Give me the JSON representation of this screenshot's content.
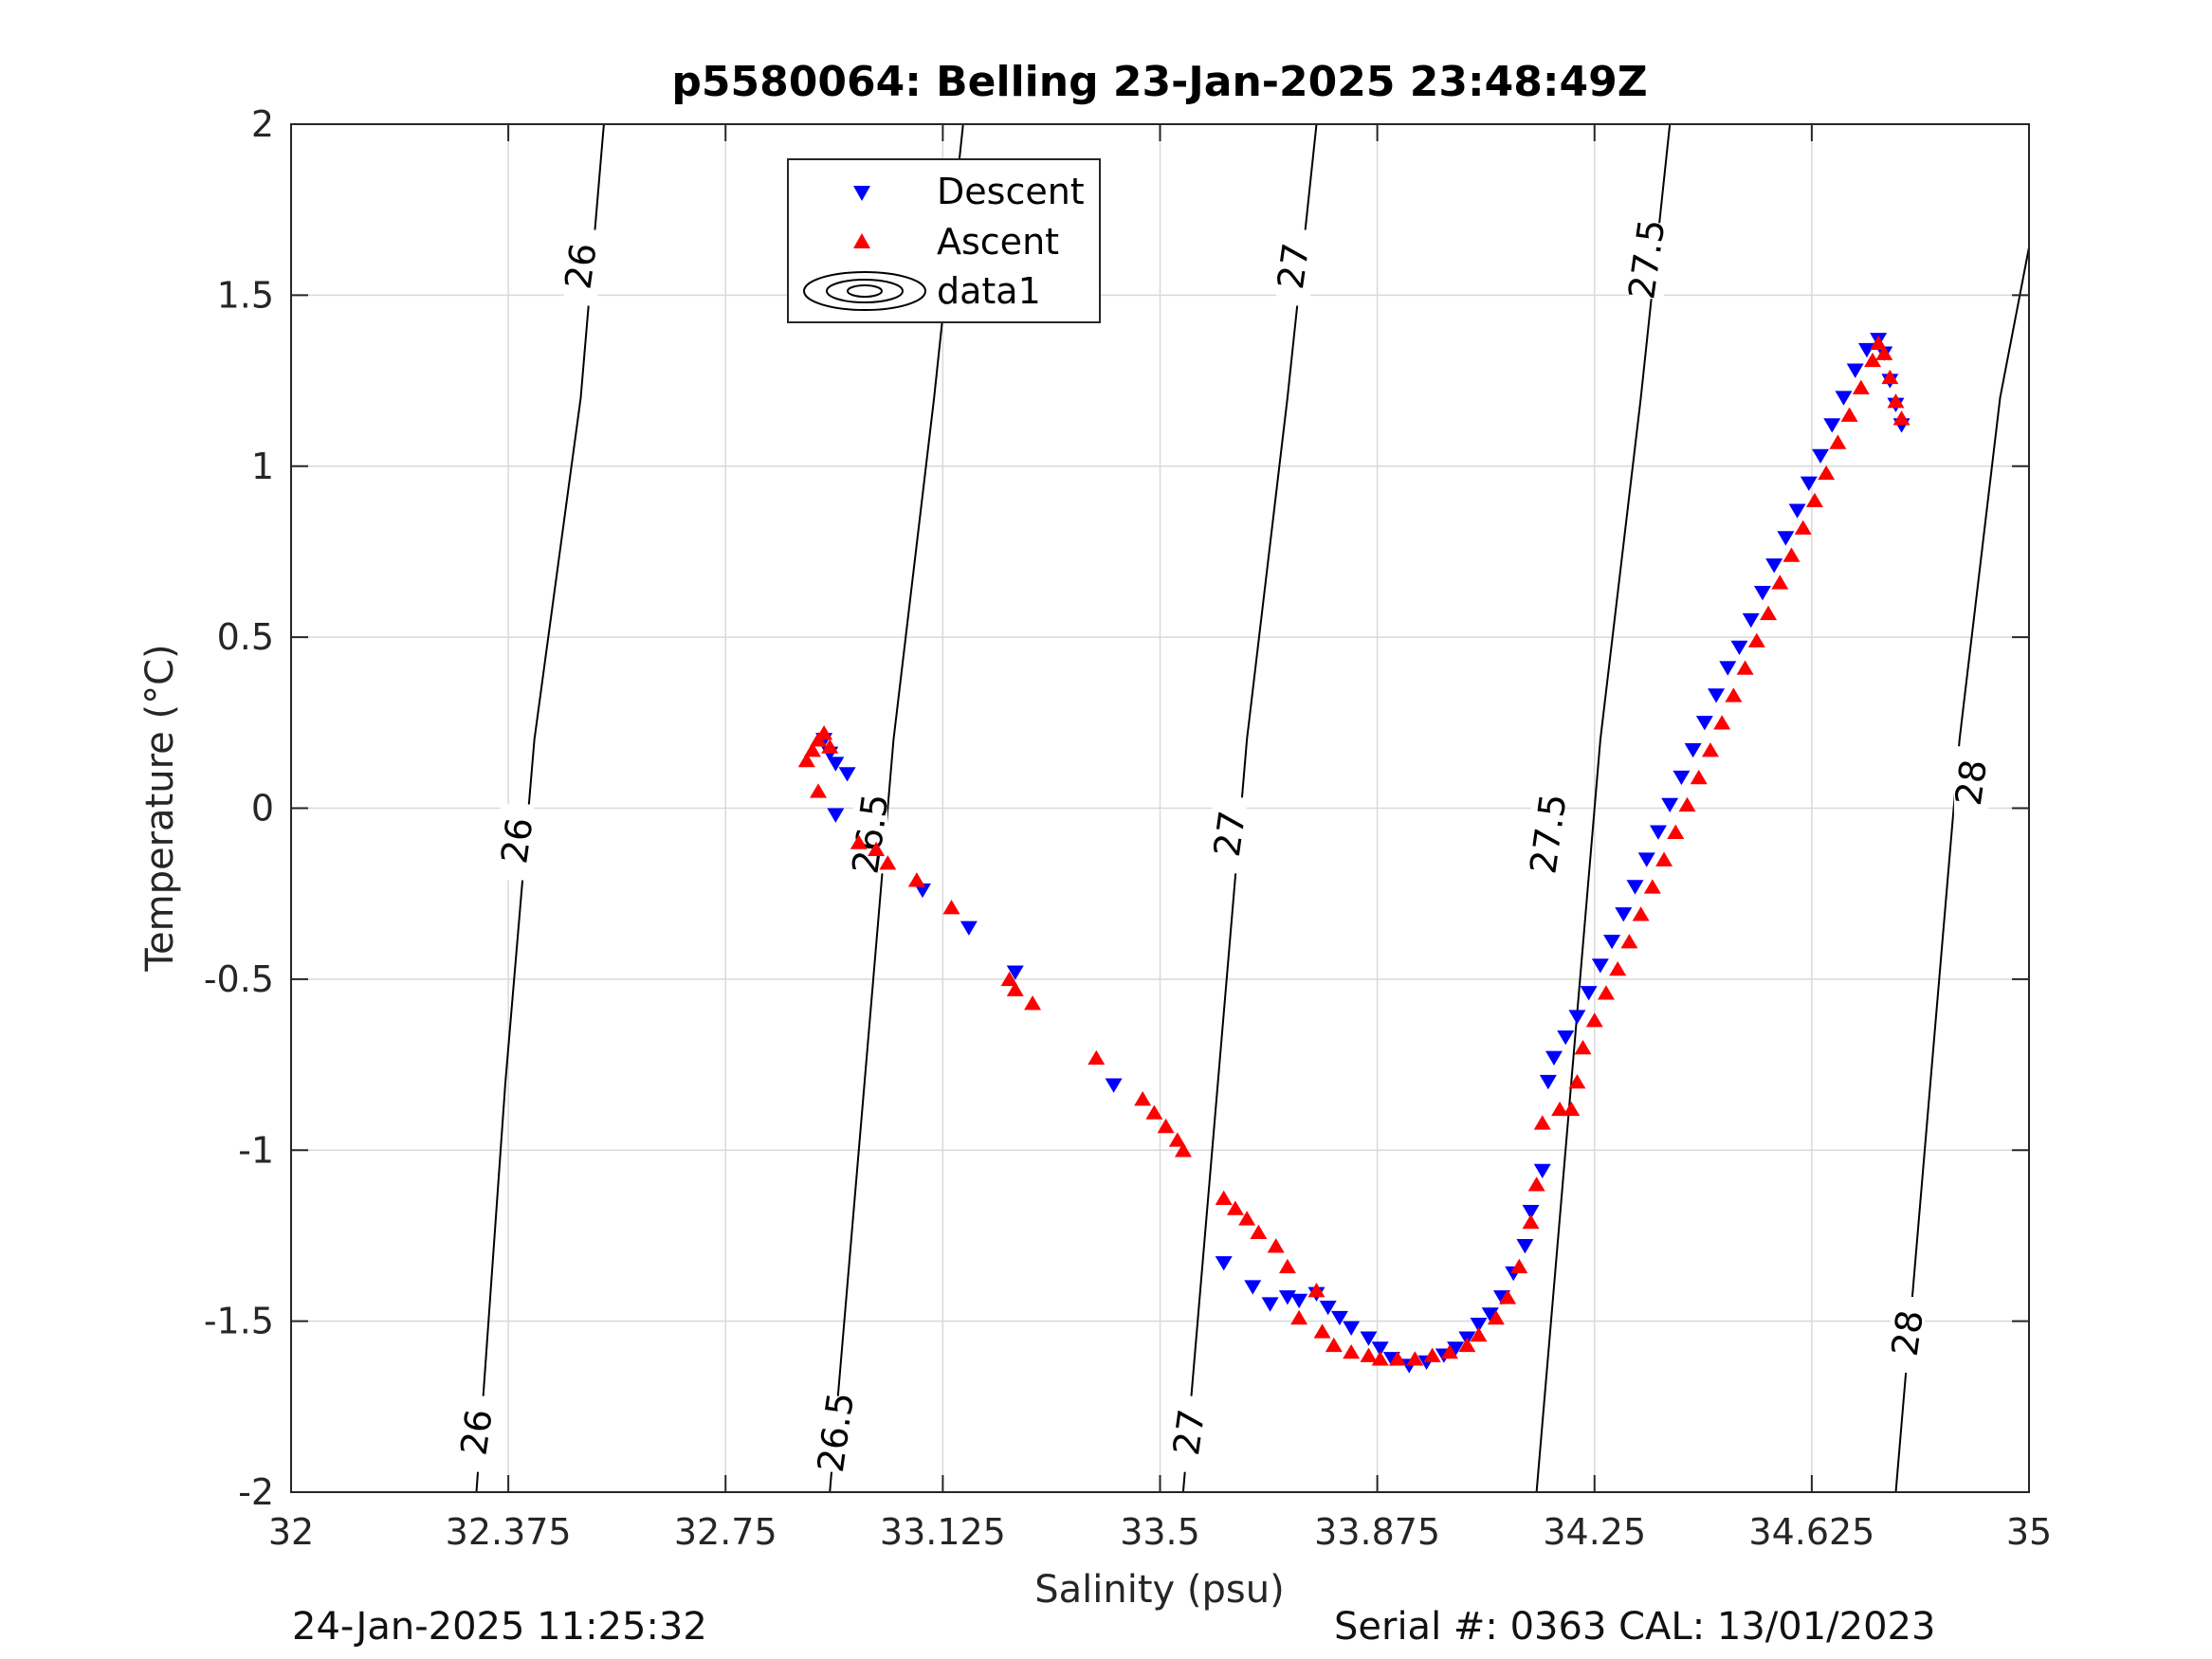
{
  "chart_data": {
    "type": "scatter",
    "title": "p5580064: Belling 23-Jan-2025 23:48:49Z",
    "xlabel": "Salinity (psu)",
    "ylabel": "Temperature (°C)",
    "xlim": [
      32,
      35
    ],
    "ylim": [
      -2,
      2
    ],
    "x_ticks": [
      "32",
      "32.375",
      "32.75",
      "33.125",
      "33.5",
      "33.875",
      "34.25",
      "34.625",
      "35"
    ],
    "y_ticks": [
      "-2",
      "-1.5",
      "-1",
      "-0.5",
      "0",
      "0.5",
      "1",
      "1.5",
      "2"
    ],
    "grid": true,
    "legend": {
      "placement": "top-center",
      "entries": [
        "Descent",
        "Ascent",
        "data1"
      ]
    },
    "colors": {
      "descent": "#0000ff",
      "ascent": "#ff0000",
      "contour": "#000000",
      "grid": "#d9d9d9"
    },
    "density_contours": [
      {
        "label": "26",
        "points": [
          [
            32.32,
            -2
          ],
          [
            32.37,
            -0.8
          ],
          [
            32.42,
            0.2
          ],
          [
            32.5,
            1.2
          ],
          [
            32.54,
            2
          ]
        ],
        "label_positions": [
          [
            32.32,
            -1.83
          ],
          [
            32.39,
            -0.1
          ],
          [
            32.5,
            1.58
          ]
        ]
      },
      {
        "label": "26.5",
        "points": [
          [
            32.93,
            -2
          ],
          [
            32.99,
            -0.8
          ],
          [
            33.04,
            0.2
          ],
          [
            33.11,
            1.2
          ],
          [
            33.16,
            2
          ]
        ],
        "label_positions": [
          [
            32.94,
            -1.83
          ],
          [
            33.0,
            -0.08
          ],
          [
            33.11,
            1.55
          ]
        ]
      },
      {
        "label": "27",
        "points": [
          [
            33.54,
            -2
          ],
          [
            33.6,
            -0.8
          ],
          [
            33.65,
            0.2
          ],
          [
            33.72,
            1.2
          ],
          [
            33.77,
            2
          ]
        ],
        "label_positions": [
          [
            33.55,
            -1.83
          ],
          [
            33.62,
            -0.08
          ],
          [
            33.73,
            1.58
          ]
        ]
      },
      {
        "label": "27.5",
        "points": [
          [
            34.15,
            -2
          ],
          [
            34.21,
            -0.8
          ],
          [
            34.26,
            0.2
          ],
          [
            34.33,
            1.2
          ],
          [
            34.38,
            2
          ]
        ],
        "label_positions": [
          [
            34.17,
            -0.08
          ],
          [
            34.34,
            1.6
          ]
        ]
      },
      {
        "label": "28",
        "points": [
          [
            34.77,
            -2
          ],
          [
            34.83,
            -0.8
          ],
          [
            34.88,
            0.2
          ],
          [
            34.95,
            1.2
          ],
          [
            35,
            1.64
          ]
        ],
        "label_positions": [
          [
            34.79,
            -1.54
          ],
          [
            34.9,
            0.07
          ]
        ]
      }
    ],
    "series": [
      {
        "name": "Descent",
        "marker": "triangle-down",
        "points": [
          [
            32.92,
            0.2
          ],
          [
            32.93,
            0.16
          ],
          [
            32.94,
            0.13
          ],
          [
            32.96,
            0.1
          ],
          [
            32.94,
            -0.02
          ],
          [
            33.09,
            -0.24
          ],
          [
            33.17,
            -0.35
          ],
          [
            33.25,
            -0.48
          ],
          [
            33.42,
            -0.81
          ],
          [
            33.61,
            -1.33
          ],
          [
            33.66,
            -1.4
          ],
          [
            33.69,
            -1.45
          ],
          [
            33.72,
            -1.43
          ],
          [
            33.74,
            -1.44
          ],
          [
            33.77,
            -1.42
          ],
          [
            33.79,
            -1.46
          ],
          [
            33.81,
            -1.49
          ],
          [
            33.83,
            -1.52
          ],
          [
            33.86,
            -1.55
          ],
          [
            33.88,
            -1.58
          ],
          [
            33.9,
            -1.61
          ],
          [
            33.93,
            -1.63
          ],
          [
            33.96,
            -1.62
          ],
          [
            33.99,
            -1.6
          ],
          [
            34.01,
            -1.58
          ],
          [
            34.03,
            -1.55
          ],
          [
            34.05,
            -1.51
          ],
          [
            34.07,
            -1.48
          ],
          [
            34.09,
            -1.43
          ],
          [
            34.11,
            -1.36
          ],
          [
            34.13,
            -1.28
          ],
          [
            34.14,
            -1.18
          ],
          [
            34.16,
            -1.06
          ],
          [
            34.17,
            -0.8
          ],
          [
            34.18,
            -0.73
          ],
          [
            34.2,
            -0.67
          ],
          [
            34.22,
            -0.61
          ],
          [
            34.24,
            -0.54
          ],
          [
            34.26,
            -0.46
          ],
          [
            34.28,
            -0.39
          ],
          [
            34.3,
            -0.31
          ],
          [
            34.32,
            -0.23
          ],
          [
            34.34,
            -0.15
          ],
          [
            34.36,
            -0.07
          ],
          [
            34.38,
            0.01
          ],
          [
            34.4,
            0.09
          ],
          [
            34.42,
            0.17
          ],
          [
            34.44,
            0.25
          ],
          [
            34.46,
            0.33
          ],
          [
            34.48,
            0.41
          ],
          [
            34.5,
            0.47
          ],
          [
            34.52,
            0.55
          ],
          [
            34.54,
            0.63
          ],
          [
            34.56,
            0.71
          ],
          [
            34.58,
            0.79
          ],
          [
            34.6,
            0.87
          ],
          [
            34.62,
            0.95
          ],
          [
            34.64,
            1.03
          ],
          [
            34.66,
            1.12
          ],
          [
            34.68,
            1.2
          ],
          [
            34.7,
            1.28
          ],
          [
            34.72,
            1.34
          ],
          [
            34.74,
            1.37
          ],
          [
            34.75,
            1.33
          ],
          [
            34.76,
            1.25
          ],
          [
            34.77,
            1.18
          ],
          [
            34.78,
            1.12
          ]
        ]
      },
      {
        "name": "Ascent",
        "marker": "triangle-up",
        "points": [
          [
            32.89,
            0.14
          ],
          [
            32.9,
            0.17
          ],
          [
            32.91,
            0.2
          ],
          [
            32.92,
            0.22
          ],
          [
            32.93,
            0.18
          ],
          [
            32.91,
            0.05
          ],
          [
            32.98,
            -0.1
          ],
          [
            33.01,
            -0.12
          ],
          [
            33.03,
            -0.16
          ],
          [
            33.08,
            -0.21
          ],
          [
            33.14,
            -0.29
          ],
          [
            33.24,
            -0.5
          ],
          [
            33.25,
            -0.53
          ],
          [
            33.28,
            -0.57
          ],
          [
            33.39,
            -0.73
          ],
          [
            33.47,
            -0.85
          ],
          [
            33.49,
            -0.89
          ],
          [
            33.51,
            -0.93
          ],
          [
            33.53,
            -0.97
          ],
          [
            33.54,
            -1.0
          ],
          [
            33.61,
            -1.14
          ],
          [
            33.63,
            -1.17
          ],
          [
            33.65,
            -1.2
          ],
          [
            33.67,
            -1.24
          ],
          [
            33.7,
            -1.28
          ],
          [
            33.72,
            -1.34
          ],
          [
            33.74,
            -1.49
          ],
          [
            33.77,
            -1.41
          ],
          [
            33.78,
            -1.53
          ],
          [
            33.8,
            -1.57
          ],
          [
            33.83,
            -1.59
          ],
          [
            33.86,
            -1.6
          ],
          [
            33.88,
            -1.61
          ],
          [
            33.91,
            -1.61
          ],
          [
            33.94,
            -1.61
          ],
          [
            33.97,
            -1.6
          ],
          [
            34.0,
            -1.59
          ],
          [
            34.03,
            -1.57
          ],
          [
            34.05,
            -1.54
          ],
          [
            34.08,
            -1.49
          ],
          [
            34.1,
            -1.43
          ],
          [
            34.12,
            -1.34
          ],
          [
            34.14,
            -1.21
          ],
          [
            34.15,
            -1.1
          ],
          [
            34.16,
            -0.92
          ],
          [
            34.19,
            -0.88
          ],
          [
            34.21,
            -0.88
          ],
          [
            34.22,
            -0.8
          ],
          [
            34.23,
            -0.7
          ],
          [
            34.25,
            -0.62
          ],
          [
            34.27,
            -0.54
          ],
          [
            34.29,
            -0.47
          ],
          [
            34.31,
            -0.39
          ],
          [
            34.33,
            -0.31
          ],
          [
            34.35,
            -0.23
          ],
          [
            34.37,
            -0.15
          ],
          [
            34.39,
            -0.07
          ],
          [
            34.41,
            0.01
          ],
          [
            34.43,
            0.09
          ],
          [
            34.45,
            0.17
          ],
          [
            34.47,
            0.25
          ],
          [
            34.49,
            0.33
          ],
          [
            34.51,
            0.41
          ],
          [
            34.53,
            0.49
          ],
          [
            34.55,
            0.57
          ],
          [
            34.57,
            0.66
          ],
          [
            34.59,
            0.74
          ],
          [
            34.61,
            0.82
          ],
          [
            34.63,
            0.9
          ],
          [
            34.65,
            0.98
          ],
          [
            34.67,
            1.07
          ],
          [
            34.69,
            1.15
          ],
          [
            34.71,
            1.23
          ],
          [
            34.73,
            1.31
          ],
          [
            34.74,
            1.36
          ],
          [
            34.75,
            1.33
          ],
          [
            34.76,
            1.26
          ],
          [
            34.77,
            1.19
          ],
          [
            34.78,
            1.14
          ]
        ]
      }
    ]
  },
  "footer": {
    "timestamp": "24-Jan-2025 11:25:32",
    "serial": "Serial #: 0363  CAL: 13/01/2023"
  }
}
